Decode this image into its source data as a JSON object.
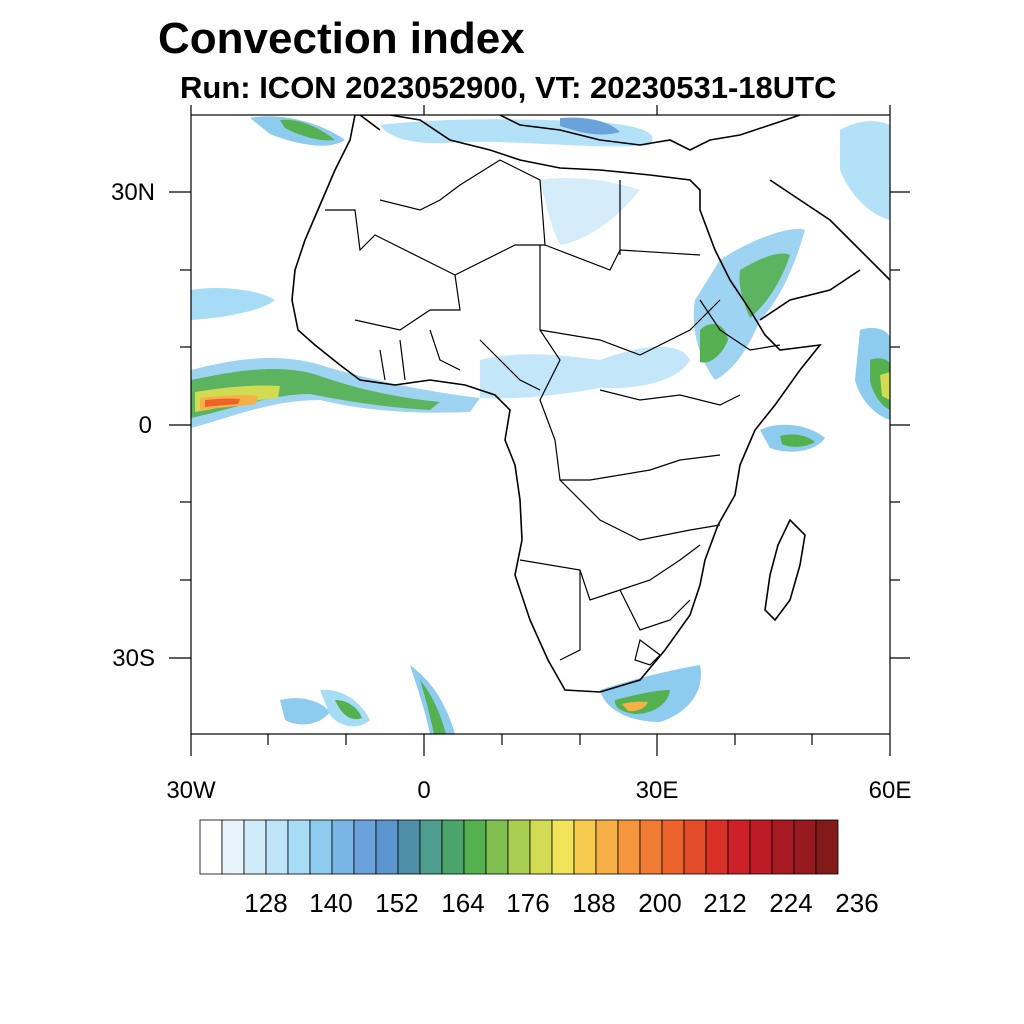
{
  "title": "Convection index",
  "subtitle": "Run: ICON 2023052900,  VT: 20230531-18UTC",
  "map": {
    "lon_labels": [
      "30W",
      "0",
      "30E",
      "60E"
    ],
    "lat_labels": [
      "30N",
      "0",
      "30S"
    ]
  },
  "colorbar": {
    "labels": [
      "128",
      "140",
      "152",
      "164",
      "176",
      "188",
      "200",
      "212",
      "224",
      "236"
    ],
    "colors": [
      "#ffffff",
      "#e8f4fc",
      "#d0ebf9",
      "#bde4f8",
      "#a6dcf6",
      "#8dcbef",
      "#79b6e5",
      "#6aa3dc",
      "#5b96cf",
      "#4f8fa8",
      "#4d9e8c",
      "#4ba56a",
      "#55b050",
      "#7fc050",
      "#a8cf50",
      "#d2dc52",
      "#f1e45a",
      "#f7cb50",
      "#f6b045",
      "#f5953d",
      "#f07b32",
      "#ec632c",
      "#e24c29",
      "#d93128",
      "#cc2128",
      "#bd1c25",
      "#a81a22",
      "#961a1f",
      "#821a1a"
    ]
  }
}
